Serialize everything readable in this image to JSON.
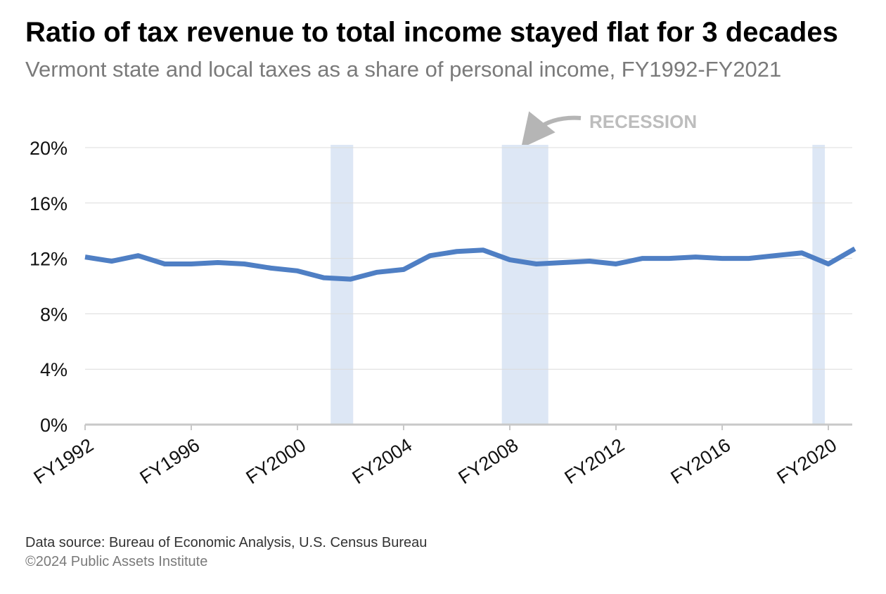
{
  "chart_data": {
    "type": "line",
    "title": "Ratio of tax revenue to total income stayed flat for 3 decades",
    "subtitle": "Vermont state and local taxes as a share of personal income, FY1992-FY2021",
    "categories": [
      "FY1992",
      null,
      null,
      null,
      "FY1996",
      null,
      null,
      null,
      "FY2000",
      null,
      null,
      null,
      "FY2004",
      null,
      null,
      null,
      "FY2008",
      null,
      null,
      null,
      "FY2012",
      null,
      null,
      null,
      "FY2016",
      null,
      null,
      null,
      "FY2020",
      null
    ],
    "values": [
      12.1,
      11.8,
      12.2,
      11.6,
      11.6,
      11.7,
      11.6,
      11.3,
      11.1,
      10.6,
      10.5,
      11.0,
      11.2,
      12.2,
      12.5,
      12.6,
      11.9,
      11.6,
      11.7,
      11.8,
      11.6,
      12.0,
      12.0,
      12.1,
      12.0,
      12.0,
      12.2,
      12.4,
      11.6,
      12.7
    ],
    "color": "#4f7fc4",
    "ylim": [
      0,
      20
    ],
    "yticks": [
      {
        "value": 0,
        "label": "0%"
      },
      {
        "value": 4,
        "label": "4%"
      },
      {
        "value": 8,
        "label": "8%"
      },
      {
        "value": 12,
        "label": "12%"
      },
      {
        "value": 16,
        "label": "16%"
      },
      {
        "value": 20,
        "label": "20%"
      }
    ],
    "grid": true,
    "recession_bands": [
      [
        9.25,
        10.1
      ],
      [
        15.7,
        17.45
      ],
      [
        27.4,
        27.87
      ]
    ],
    "band_color": "#dde7f5",
    "annotation": "RECESSION",
    "source": "Data source: Bureau of Economic Analysis, U.S. Census Bureau",
    "copyright": "©2024 Public Assets Institute"
  }
}
